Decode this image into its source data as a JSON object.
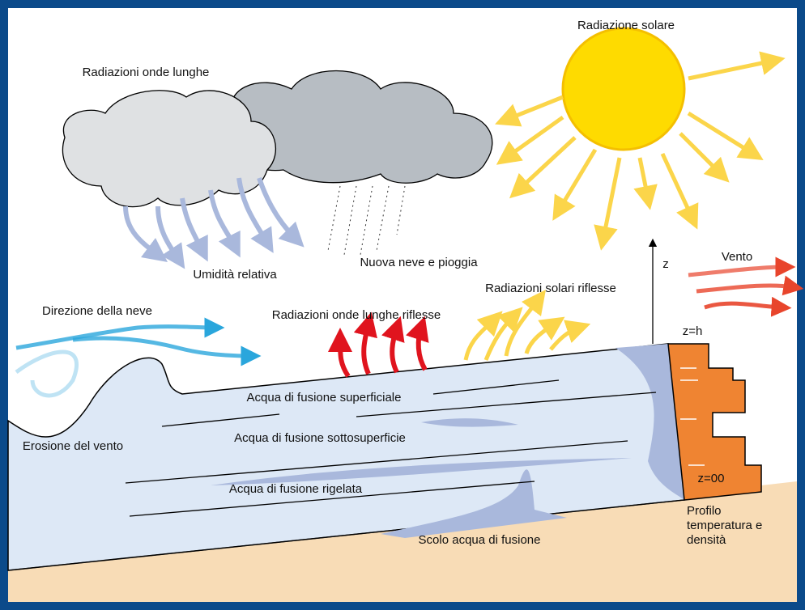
{
  "labels": {
    "solar": "Radiazione solare",
    "longwave": "Radiazioni onde lunghe",
    "humidity": "Umidità relativa",
    "new_snow": "Nuova neve e pioggia",
    "wind": "Vento",
    "reflected_solar": "Radiazioni solari riflesse",
    "snow_direction": "Direzione della neve",
    "reflected_longwave": "Radiazioni onde lunghe riflesse",
    "z": "z",
    "z_h": "z=h",
    "surface_melt": "Acqua di fusione superficiale",
    "wind_erosion": "Erosione del vento",
    "subsurface_melt": "Acqua di fusione sottosuperficie",
    "refrozen_melt": "Acqua di fusione rigelata",
    "z_00": "z=00",
    "profile": [
      "Profilo",
      "temperatura e",
      "densità"
    ],
    "runoff": "Scolo acqua di fusione"
  }
}
